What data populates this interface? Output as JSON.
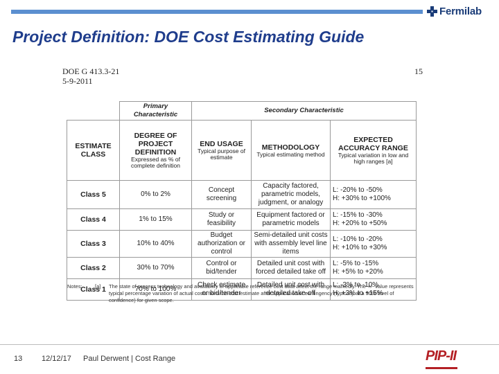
{
  "header": {
    "logo_text": "Fermilab",
    "title": "Project Definition: DOE Cost Estimating Guide"
  },
  "document": {
    "ref_line1": "DOE G 413.3-21",
    "ref_line2": "5-9-2011",
    "page_number": "15"
  },
  "table": {
    "primary_header": "Primary Characteristic",
    "secondary_header": "Secondary Characteristic",
    "columns": [
      {
        "label": "ESTIMATE CLASS",
        "sub": ""
      },
      {
        "label": "DEGREE OF PROJECT DEFINITION",
        "sub": "Expressed as % of complete definition"
      },
      {
        "label": "END USAGE",
        "sub": "Typical purpose of estimate"
      },
      {
        "label": "METHODOLOGY",
        "sub": "Typical estimating method"
      },
      {
        "label": "EXPECTED ACCURACY RANGE",
        "sub": "Typical variation in low and high ranges [a]"
      }
    ],
    "rows": [
      {
        "cls": "Class 5",
        "definition": "0% to 2%",
        "usage": "Concept screening",
        "method": "Capacity factored, parametric models, judgment, or analogy",
        "low": "L:  -20% to -50%",
        "high": "H:  +30% to +100%"
      },
      {
        "cls": "Class 4",
        "definition": "1% to 15%",
        "usage": "Study or feasibility",
        "method": "Equipment factored or parametric models",
        "low": "L:  -15% to -30%",
        "high": "H:  +20% to +50%"
      },
      {
        "cls": "Class 3",
        "definition": "10% to 40%",
        "usage": "Budget authorization or control",
        "method": "Semi-detailed unit costs with assembly level line items",
        "low": "L:  -10% to -20%",
        "high": "H:  +10% to +30%"
      },
      {
        "cls": "Class 2",
        "definition": "30% to 70%",
        "usage": "Control or bid/tender",
        "method": "Detailed unit cost with forced detailed take off",
        "low": "L:  -5% to -15%",
        "high": "H:  +5% to +20%"
      },
      {
        "cls": "Class 1",
        "definition": "70% to 100%",
        "usage": "Check estimate or bid/tender",
        "method": "Detailed unit cost with detailed take-off",
        "low": "L:  -3% to -10%",
        "high": "H:  +3% to +15%"
      }
    ]
  },
  "notes": {
    "label": "Notes:",
    "marker": "[a]",
    "text": "The state of process technology and availability of applicable reference cost data affect the range markedly. The +/- value represents typical percentage variation of actual costs from the cost estimate after application of contingency (typically at a 50% level of confidence) for given scope."
  },
  "footer": {
    "page": "13",
    "date": "12/12/17",
    "author": "Paul Derwent | Cost Range",
    "brand": "PIP-II"
  },
  "colors": {
    "title": "#1f3d8c",
    "topbar": "#5b8fd0",
    "logo": "#1a3c78",
    "brand": "#b42025"
  }
}
